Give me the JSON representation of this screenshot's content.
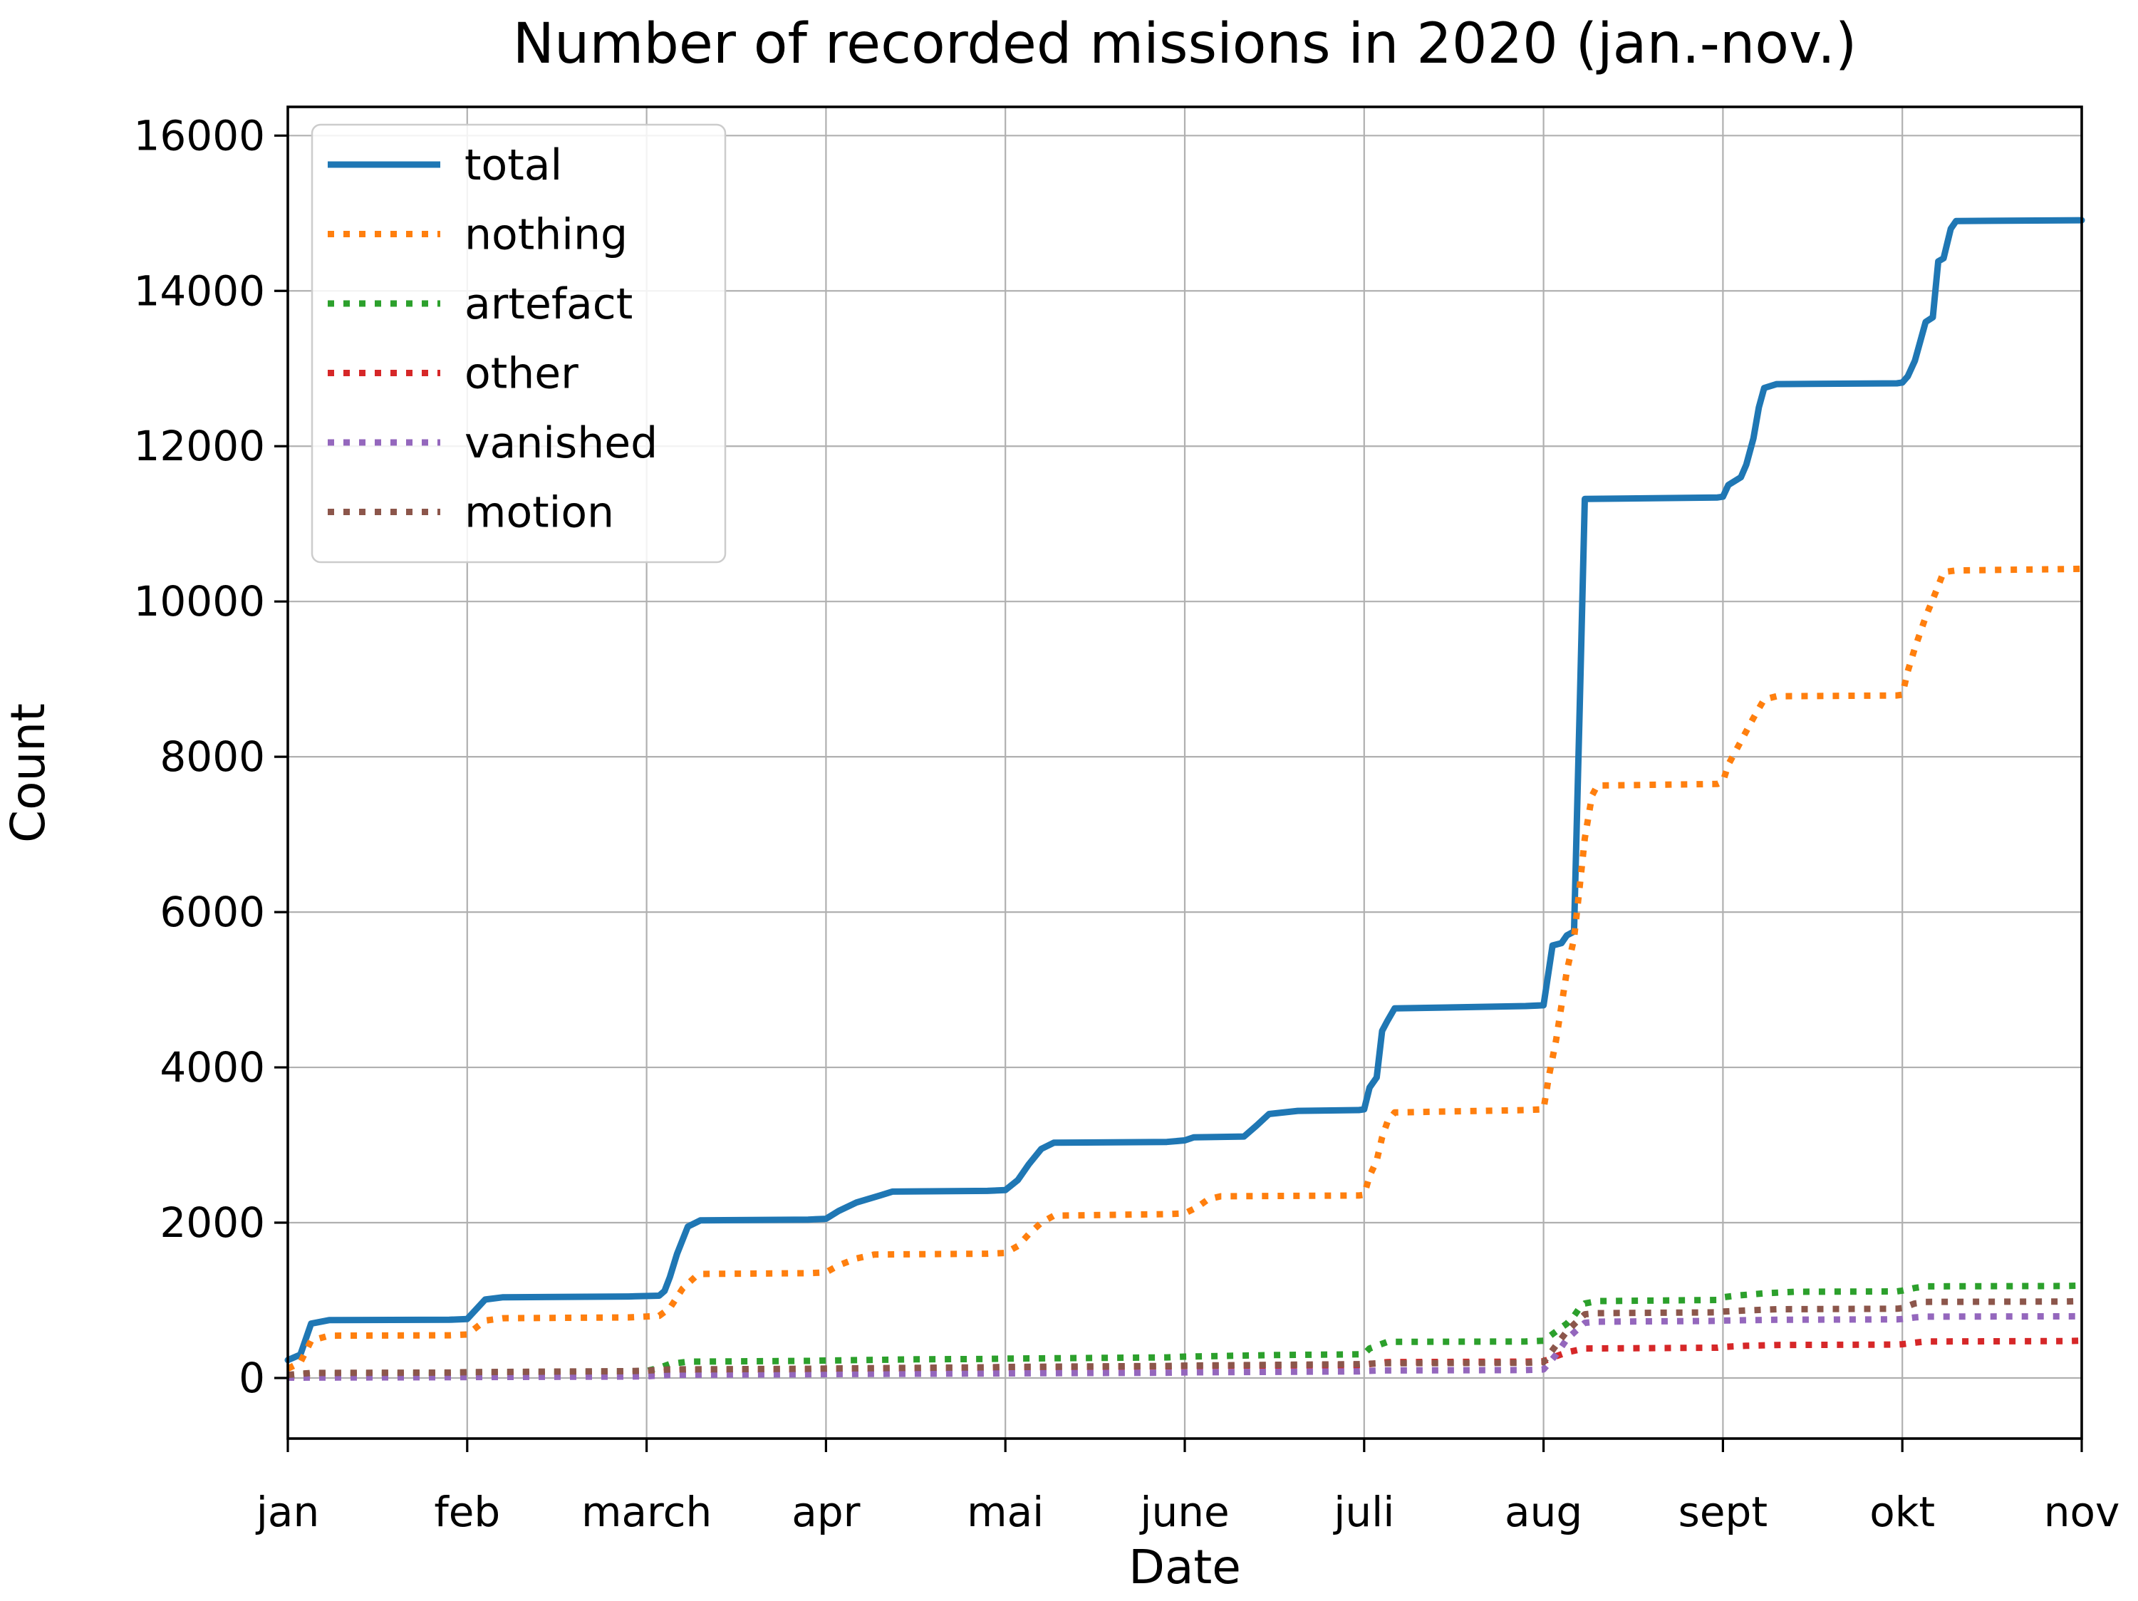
{
  "page": {
    "background": "#ffffff"
  },
  "chart_data": {
    "type": "line",
    "title": "Number of recorded missions in 2020 (jan.-nov.)",
    "xlabel": "Date",
    "ylabel": "Count",
    "grid": true,
    "legend_position": "upper left",
    "xlim": [
      1,
      11
    ],
    "ylim": [
      -780,
      16370
    ],
    "x_tick_positions": [
      1,
      2,
      3,
      4,
      5,
      6,
      7,
      8,
      9,
      10,
      11
    ],
    "x_tick_labels": [
      "jan",
      "feb",
      "march",
      "apr",
      "mai",
      "june",
      "juli",
      "aug",
      "sept",
      "okt",
      "nov"
    ],
    "y_ticks": [
      0,
      2000,
      4000,
      6000,
      8000,
      10000,
      12000,
      14000,
      16000
    ],
    "grid_color": "#b0b0b0",
    "series": [
      {
        "name": "total",
        "color": "#1f77b4",
        "linestyle": "solid",
        "points": [
          [
            1.0,
            230
          ],
          [
            1.07,
            300
          ],
          [
            1.13,
            700
          ],
          [
            1.23,
            745
          ],
          [
            1.9,
            750
          ],
          [
            2.0,
            760
          ],
          [
            2.1,
            1010
          ],
          [
            2.2,
            1040
          ],
          [
            2.9,
            1050
          ],
          [
            3.07,
            1060
          ],
          [
            3.1,
            1120
          ],
          [
            3.13,
            1300
          ],
          [
            3.17,
            1600
          ],
          [
            3.23,
            1950
          ],
          [
            3.3,
            2030
          ],
          [
            3.9,
            2040
          ],
          [
            4.0,
            2050
          ],
          [
            4.07,
            2150
          ],
          [
            4.17,
            2260
          ],
          [
            4.3,
            2350
          ],
          [
            4.37,
            2400
          ],
          [
            4.9,
            2410
          ],
          [
            5.0,
            2420
          ],
          [
            5.07,
            2550
          ],
          [
            5.13,
            2750
          ],
          [
            5.2,
            2950
          ],
          [
            5.27,
            3030
          ],
          [
            5.9,
            3040
          ],
          [
            6.0,
            3060
          ],
          [
            6.05,
            3100
          ],
          [
            6.33,
            3110
          ],
          [
            6.4,
            3250
          ],
          [
            6.47,
            3400
          ],
          [
            6.63,
            3440
          ],
          [
            6.97,
            3450
          ],
          [
            7.0,
            3460
          ],
          [
            7.03,
            3740
          ],
          [
            7.07,
            3870
          ],
          [
            7.1,
            4470
          ],
          [
            7.13,
            4600
          ],
          [
            7.17,
            4760
          ],
          [
            7.9,
            4790
          ],
          [
            8.0,
            4800
          ],
          [
            8.05,
            5570
          ],
          [
            8.1,
            5600
          ],
          [
            8.13,
            5700
          ],
          [
            8.17,
            5750
          ],
          [
            8.2,
            8500
          ],
          [
            8.23,
            11320
          ],
          [
            8.97,
            11340
          ],
          [
            9.0,
            11350
          ],
          [
            9.03,
            11500
          ],
          [
            9.1,
            11600
          ],
          [
            9.13,
            11760
          ],
          [
            9.17,
            12100
          ],
          [
            9.2,
            12500
          ],
          [
            9.23,
            12750
          ],
          [
            9.3,
            12800
          ],
          [
            9.97,
            12810
          ],
          [
            10.0,
            12820
          ],
          [
            10.03,
            12900
          ],
          [
            10.07,
            13100
          ],
          [
            10.1,
            13350
          ],
          [
            10.13,
            13600
          ],
          [
            10.17,
            13660
          ],
          [
            10.2,
            14380
          ],
          [
            10.23,
            14420
          ],
          [
            10.27,
            14800
          ],
          [
            10.3,
            14900
          ],
          [
            11.0,
            14910
          ]
        ]
      },
      {
        "name": "nothing",
        "color": "#ff7f0e",
        "linestyle": "dotted",
        "points": [
          [
            1.0,
            120
          ],
          [
            1.07,
            200
          ],
          [
            1.13,
            480
          ],
          [
            1.23,
            545
          ],
          [
            1.9,
            550
          ],
          [
            2.0,
            560
          ],
          [
            2.1,
            740
          ],
          [
            2.2,
            770
          ],
          [
            2.9,
            780
          ],
          [
            3.07,
            800
          ],
          [
            3.13,
            900
          ],
          [
            3.2,
            1150
          ],
          [
            3.27,
            1300
          ],
          [
            3.3,
            1340
          ],
          [
            3.9,
            1350
          ],
          [
            4.0,
            1360
          ],
          [
            4.07,
            1450
          ],
          [
            4.17,
            1540
          ],
          [
            4.27,
            1590
          ],
          [
            4.9,
            1600
          ],
          [
            5.0,
            1610
          ],
          [
            5.07,
            1700
          ],
          [
            5.13,
            1850
          ],
          [
            5.2,
            2000
          ],
          [
            5.27,
            2090
          ],
          [
            5.9,
            2110
          ],
          [
            6.0,
            2120
          ],
          [
            6.07,
            2200
          ],
          [
            6.13,
            2300
          ],
          [
            6.2,
            2340
          ],
          [
            6.97,
            2350
          ],
          [
            7.0,
            2360
          ],
          [
            7.03,
            2600
          ],
          [
            7.07,
            2800
          ],
          [
            7.1,
            3100
          ],
          [
            7.13,
            3300
          ],
          [
            7.17,
            3420
          ],
          [
            7.9,
            3450
          ],
          [
            8.0,
            3460
          ],
          [
            8.03,
            3890
          ],
          [
            8.07,
            4350
          ],
          [
            8.1,
            4800
          ],
          [
            8.13,
            5240
          ],
          [
            8.17,
            5660
          ],
          [
            8.2,
            6300
          ],
          [
            8.23,
            6950
          ],
          [
            8.27,
            7500
          ],
          [
            8.3,
            7630
          ],
          [
            8.97,
            7650
          ],
          [
            9.0,
            7680
          ],
          [
            9.03,
            7900
          ],
          [
            9.1,
            8200
          ],
          [
            9.17,
            8500
          ],
          [
            9.23,
            8740
          ],
          [
            9.3,
            8780
          ],
          [
            9.97,
            8790
          ],
          [
            10.0,
            8800
          ],
          [
            10.03,
            9100
          ],
          [
            10.07,
            9400
          ],
          [
            10.13,
            9800
          ],
          [
            10.2,
            10200
          ],
          [
            10.23,
            10380
          ],
          [
            10.3,
            10400
          ],
          [
            11.0,
            10420
          ]
        ]
      },
      {
        "name": "artefact",
        "color": "#2ca02c",
        "linestyle": "dotted",
        "points": [
          [
            1.0,
            30
          ],
          [
            1.13,
            60
          ],
          [
            1.9,
            65
          ],
          [
            2.0,
            70
          ],
          [
            2.9,
            85
          ],
          [
            3.0,
            90
          ],
          [
            3.07,
            130
          ],
          [
            3.13,
            180
          ],
          [
            3.23,
            210
          ],
          [
            3.9,
            220
          ],
          [
            4.0,
            225
          ],
          [
            4.5,
            240
          ],
          [
            4.9,
            245
          ],
          [
            5.0,
            250
          ],
          [
            5.9,
            265
          ],
          [
            6.0,
            275
          ],
          [
            6.5,
            295
          ],
          [
            6.97,
            305
          ],
          [
            7.0,
            310
          ],
          [
            7.03,
            380
          ],
          [
            7.1,
            440
          ],
          [
            7.13,
            465
          ],
          [
            7.9,
            470
          ],
          [
            8.0,
            480
          ],
          [
            8.07,
            600
          ],
          [
            8.13,
            700
          ],
          [
            8.17,
            800
          ],
          [
            8.2,
            900
          ],
          [
            8.23,
            960
          ],
          [
            8.3,
            990
          ],
          [
            8.97,
            1005
          ],
          [
            9.0,
            1040
          ],
          [
            9.07,
            1060
          ],
          [
            9.23,
            1090
          ],
          [
            9.4,
            1110
          ],
          [
            9.97,
            1115
          ],
          [
            10.0,
            1125
          ],
          [
            10.07,
            1160
          ],
          [
            10.13,
            1180
          ],
          [
            10.9,
            1185
          ],
          [
            11.0,
            1190
          ]
        ]
      },
      {
        "name": "other",
        "color": "#d62728",
        "linestyle": "dotted",
        "points": [
          [
            1.0,
            15
          ],
          [
            1.13,
            35
          ],
          [
            1.9,
            40
          ],
          [
            2.0,
            42
          ],
          [
            2.9,
            50
          ],
          [
            3.0,
            60
          ],
          [
            3.13,
            90
          ],
          [
            3.23,
            105
          ],
          [
            3.9,
            110
          ],
          [
            4.0,
            115
          ],
          [
            4.9,
            130
          ],
          [
            5.0,
            135
          ],
          [
            5.9,
            150
          ],
          [
            6.0,
            155
          ],
          [
            6.97,
            165
          ],
          [
            7.0,
            170
          ],
          [
            7.07,
            190
          ],
          [
            7.13,
            205
          ],
          [
            7.9,
            210
          ],
          [
            8.0,
            215
          ],
          [
            8.07,
            280
          ],
          [
            8.13,
            330
          ],
          [
            8.2,
            365
          ],
          [
            8.23,
            380
          ],
          [
            8.97,
            390
          ],
          [
            9.0,
            400
          ],
          [
            9.13,
            415
          ],
          [
            9.3,
            425
          ],
          [
            9.97,
            430
          ],
          [
            10.0,
            435
          ],
          [
            10.07,
            455
          ],
          [
            10.13,
            470
          ],
          [
            10.9,
            475
          ],
          [
            11.0,
            480
          ]
        ]
      },
      {
        "name": "vanished",
        "color": "#9467bd",
        "linestyle": "dotted",
        "points": [
          [
            1.0,
            5
          ],
          [
            1.9,
            10
          ],
          [
            2.0,
            12
          ],
          [
            2.9,
            18
          ],
          [
            3.0,
            22
          ],
          [
            3.13,
            40
          ],
          [
            3.9,
            48
          ],
          [
            4.0,
            50
          ],
          [
            4.9,
            58
          ],
          [
            5.0,
            60
          ],
          [
            5.9,
            68
          ],
          [
            6.0,
            72
          ],
          [
            6.97,
            85
          ],
          [
            7.0,
            90
          ],
          [
            7.1,
            97
          ],
          [
            7.9,
            102
          ],
          [
            8.0,
            110
          ],
          [
            8.07,
            300
          ],
          [
            8.13,
            500
          ],
          [
            8.2,
            650
          ],
          [
            8.23,
            710
          ],
          [
            8.3,
            725
          ],
          [
            8.97,
            735
          ],
          [
            9.0,
            740
          ],
          [
            9.3,
            750
          ],
          [
            9.97,
            755
          ],
          [
            10.0,
            760
          ],
          [
            10.07,
            780
          ],
          [
            10.13,
            790
          ],
          [
            11.0,
            795
          ]
        ]
      },
      {
        "name": "motion",
        "color": "#8c564b",
        "linestyle": "dotted",
        "points": [
          [
            1.0,
            40
          ],
          [
            1.13,
            65
          ],
          [
            1.9,
            70
          ],
          [
            2.0,
            75
          ],
          [
            2.9,
            88
          ],
          [
            3.0,
            95
          ],
          [
            3.13,
            110
          ],
          [
            3.9,
            118
          ],
          [
            4.0,
            122
          ],
          [
            4.9,
            138
          ],
          [
            5.0,
            142
          ],
          [
            5.9,
            155
          ],
          [
            6.0,
            160
          ],
          [
            6.97,
            178
          ],
          [
            7.0,
            182
          ],
          [
            7.1,
            190
          ],
          [
            7.9,
            195
          ],
          [
            8.0,
            205
          ],
          [
            8.07,
            420
          ],
          [
            8.13,
            600
          ],
          [
            8.2,
            760
          ],
          [
            8.23,
            820
          ],
          [
            8.3,
            835
          ],
          [
            8.97,
            845
          ],
          [
            9.0,
            855
          ],
          [
            9.13,
            870
          ],
          [
            9.3,
            885
          ],
          [
            9.97,
            892
          ],
          [
            10.0,
            900
          ],
          [
            10.07,
            960
          ],
          [
            10.13,
            980
          ],
          [
            10.9,
            985
          ],
          [
            11.0,
            990
          ]
        ]
      }
    ]
  }
}
